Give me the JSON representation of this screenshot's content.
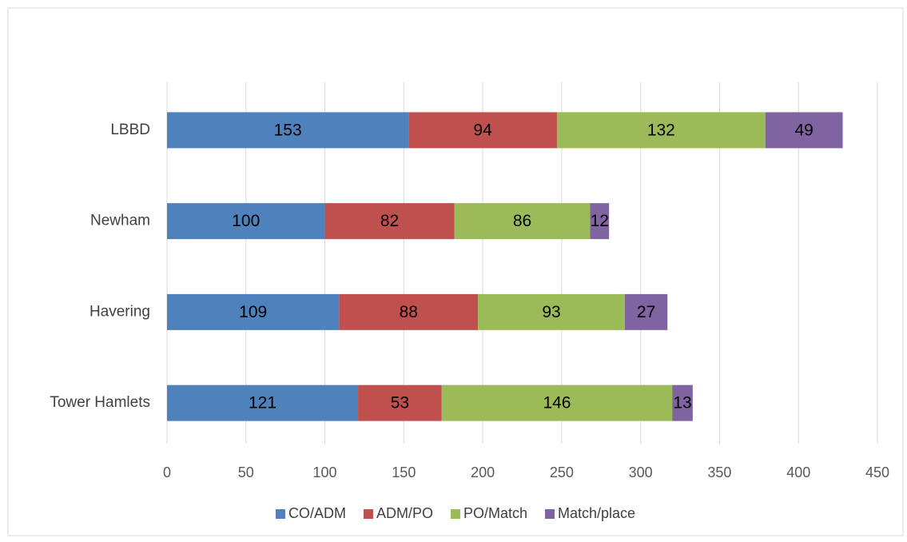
{
  "chart_data": {
    "type": "bar",
    "orientation": "horizontal",
    "stacked": true,
    "categories": [
      "LBBD",
      "Newham",
      "Havering",
      "Tower Hamlets"
    ],
    "series": [
      {
        "name": "CO/ADM",
        "color": "#4f81bd",
        "values": [
          153,
          100,
          109,
          121
        ]
      },
      {
        "name": "ADM/PO",
        "color": "#c0504d",
        "values": [
          94,
          82,
          88,
          53
        ]
      },
      {
        "name": "PO/Match",
        "color": "#9bbb59",
        "values": [
          132,
          86,
          93,
          146
        ]
      },
      {
        "name": "Match/place",
        "color": "#8064a2",
        "values": [
          49,
          12,
          27,
          13
        ]
      }
    ],
    "xlim": [
      0,
      450
    ],
    "xticks": [
      0,
      50,
      100,
      150,
      200,
      250,
      300,
      350,
      400,
      450
    ],
    "grid": true,
    "legend": "bottom"
  }
}
